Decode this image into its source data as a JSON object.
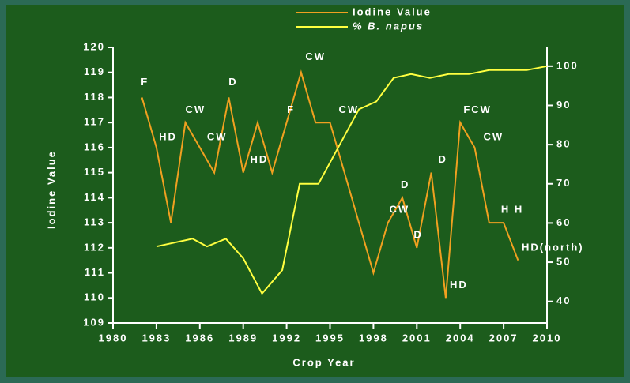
{
  "chart_data": {
    "type": "line",
    "xlabel": "Crop Year",
    "ylabel": "Iodine Value",
    "xlim": [
      1980,
      2010
    ],
    "xticks": [
      1980,
      1983,
      1986,
      1989,
      1992,
      1995,
      1998,
      2001,
      2004,
      2007,
      2010
    ],
    "ylim": [
      109,
      120
    ],
    "yticks": [
      109,
      110,
      111,
      112,
      113,
      114,
      115,
      116,
      117,
      118,
      119,
      120
    ],
    "y2lim": [
      34.5,
      104.8
    ],
    "y2ticks": [
      40,
      50,
      60,
      70,
      80,
      90,
      100
    ],
    "grid": false,
    "legend": "top",
    "series": [
      {
        "name": "Iodine Value",
        "color": "#f0a020",
        "x": [
          1982,
          1983,
          1984,
          1985,
          1986,
          1987,
          1988,
          1989,
          1990,
          1991,
          1992,
          1993,
          1994,
          1995,
          1996,
          1997,
          1998,
          1999,
          2000,
          2001,
          2002,
          2003,
          2004,
          2005,
          2006,
          2007,
          2008
        ],
        "values": [
          118,
          116,
          113,
          117,
          116,
          115,
          118,
          115,
          117,
          115,
          117,
          119,
          117,
          117,
          115,
          113,
          111,
          113,
          114,
          112,
          115,
          110,
          117,
          116,
          113,
          113,
          111.5
        ]
      },
      {
        "name": "% B. napus",
        "color": "#ffff40",
        "axis": "y2",
        "x": [
          1983,
          1985.5,
          1986.5,
          1987.8,
          1989,
          1990.3,
          1991.7,
          1992.9,
          1994.2,
          1997,
          1998.2,
          1999.4,
          2000.6,
          2001.9,
          2003.2,
          2004.6,
          2006,
          2008.6,
          2010
        ],
        "values": [
          54,
          56,
          54,
          56,
          51,
          42,
          48,
          70,
          70,
          89,
          91,
          97,
          98,
          97,
          98,
          98,
          99,
          99,
          100
        ]
      }
    ],
    "annotations": [
      {
        "text": "F",
        "x": 1982.2,
        "y": 118.6
      },
      {
        "text": "HD",
        "x": 1983.8,
        "y": 116.4
      },
      {
        "text": "CW",
        "x": 1985.7,
        "y": 117.5
      },
      {
        "text": "CW",
        "x": 1987.2,
        "y": 116.4
      },
      {
        "text": "D",
        "x": 1988.3,
        "y": 118.6
      },
      {
        "text": "HD",
        "x": 1990.1,
        "y": 115.5
      },
      {
        "text": "F",
        "x": 1992.3,
        "y": 117.5
      },
      {
        "text": "CW",
        "x": 1994,
        "y": 119.6
      },
      {
        "text": "CW",
        "x": 1996.3,
        "y": 117.5
      },
      {
        "text": "CW",
        "x": 1999.8,
        "y": 113.5
      },
      {
        "text": "D",
        "x": 2000.2,
        "y": 114.5
      },
      {
        "text": "D",
        "x": 2001.1,
        "y": 112.5
      },
      {
        "text": "D",
        "x": 2002.8,
        "y": 115.5
      },
      {
        "text": "HD",
        "x": 2003.9,
        "y": 110.5
      },
      {
        "text": "FCW",
        "x": 2005.2,
        "y": 117.5
      },
      {
        "text": "CW",
        "x": 2006.3,
        "y": 116.4
      },
      {
        "text": "H H",
        "x": 2007.6,
        "y": 113.5
      },
      {
        "text": "HD(north)",
        "x": 2010.4,
        "y": 112
      }
    ]
  }
}
